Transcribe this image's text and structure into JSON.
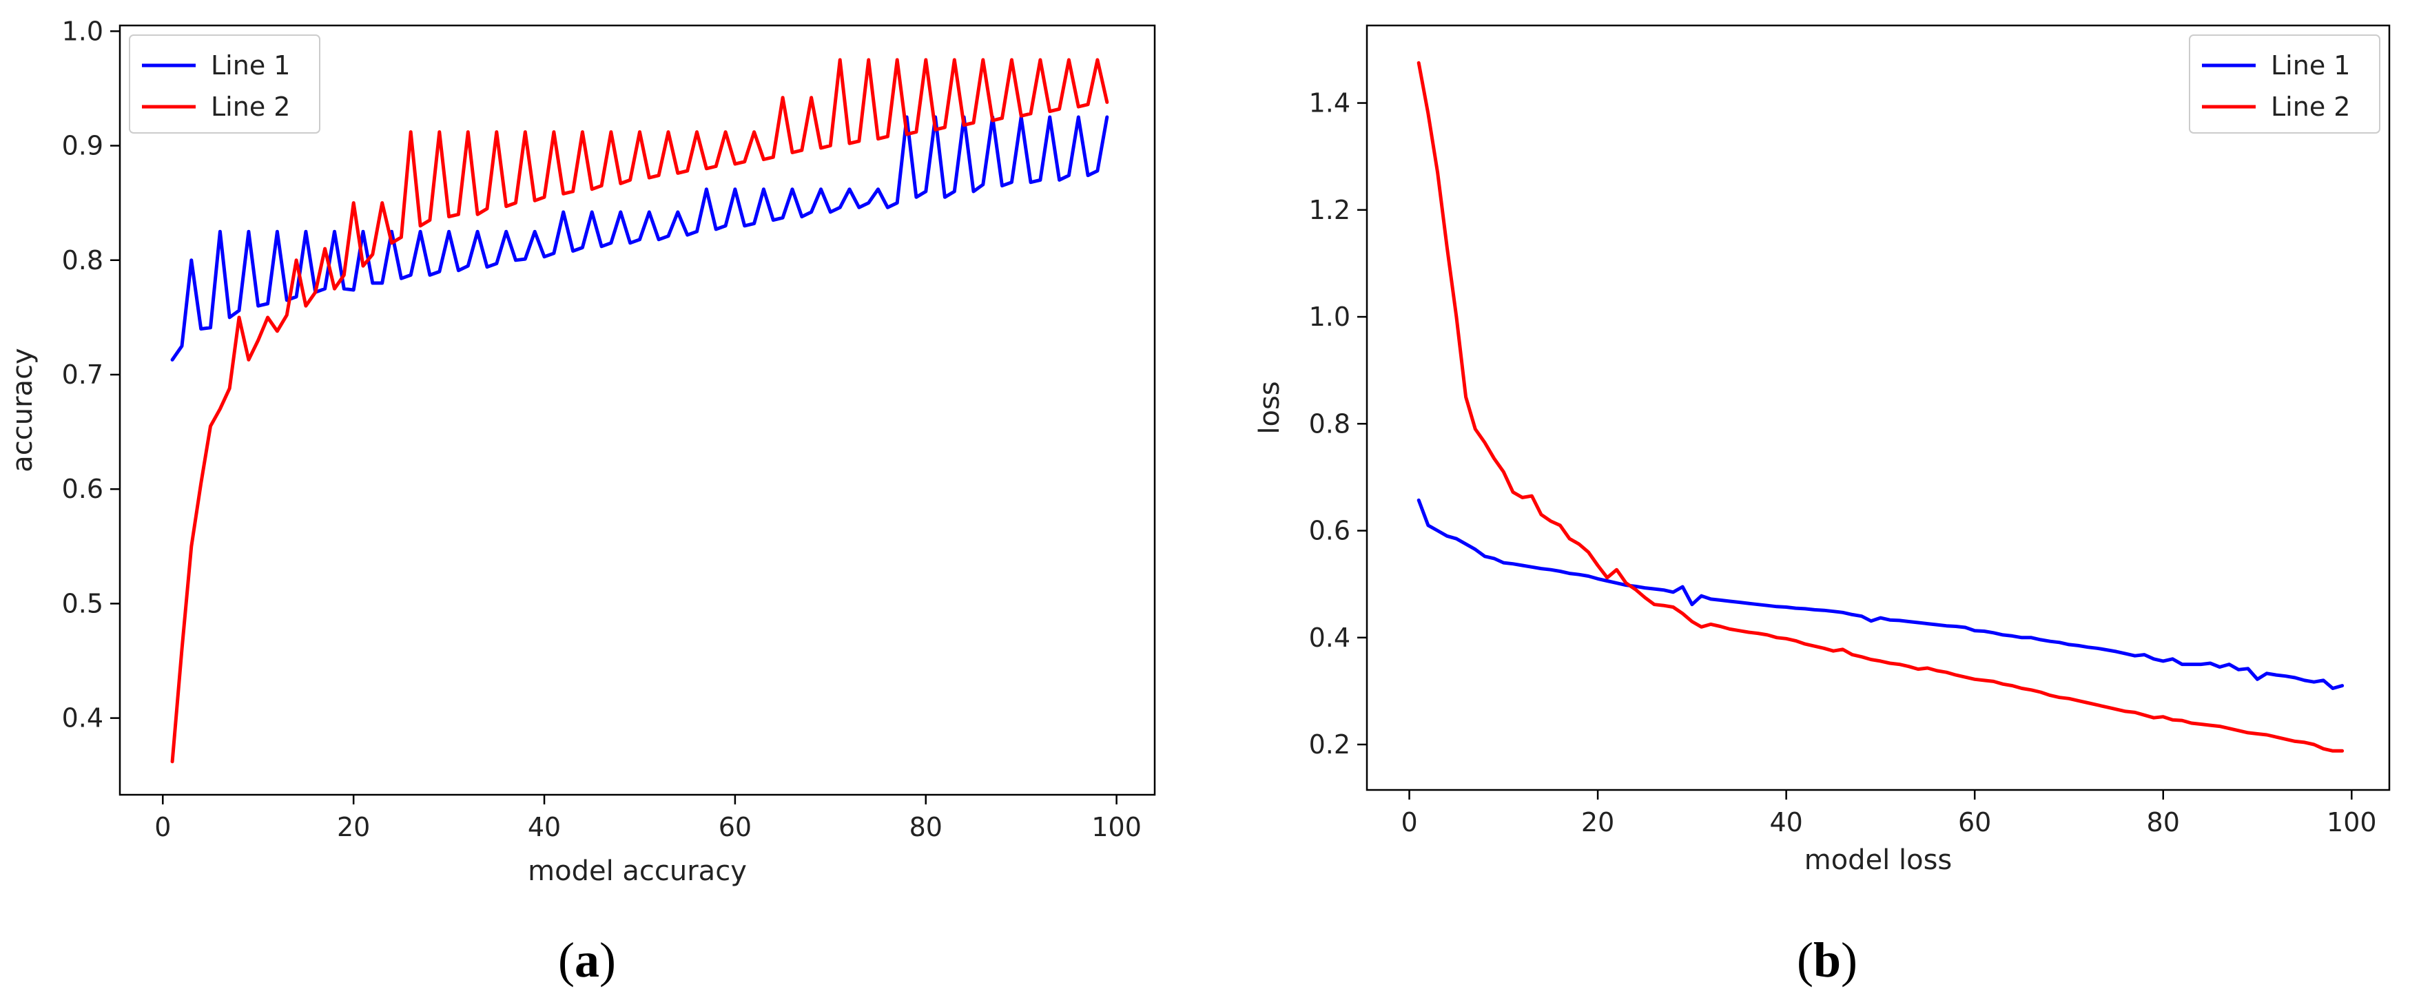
{
  "chart_data": [
    {
      "type": "line",
      "panel_label_open": "(",
      "panel_label_letter": "a",
      "panel_label_close": ")",
      "xlabel": "model accuracy",
      "ylabel": "accuracy",
      "xlim": [
        -4.5,
        104
      ],
      "ylim": [
        0.333,
        1.005
      ],
      "xticks": [
        0,
        20,
        40,
        60,
        80,
        100
      ],
      "yticks": [
        0.4,
        0.5,
        0.6,
        0.7,
        0.8,
        0.9,
        1.0
      ],
      "ytick_labels": [
        "0.4",
        "0.5",
        "0.6",
        "0.7",
        "0.8",
        "0.9",
        "1.0"
      ],
      "legend_position": "upper left",
      "grid": false,
      "series": [
        {
          "name": "Line 1",
          "color": "#0000ff",
          "x": [
            1,
            2,
            3,
            4,
            5,
            6,
            7,
            8,
            9,
            10,
            11,
            12,
            13,
            14,
            15,
            16,
            17,
            18,
            19,
            20,
            21,
            22,
            23,
            24,
            25,
            26,
            27,
            28,
            29,
            30,
            31,
            32,
            33,
            34,
            35,
            36,
            37,
            38,
            39,
            40,
            41,
            42,
            43,
            44,
            45,
            46,
            47,
            48,
            49,
            50,
            51,
            52,
            53,
            54,
            55,
            56,
            57,
            58,
            59,
            60,
            61,
            62,
            63,
            64,
            65,
            66,
            67,
            68,
            69,
            70,
            71,
            72,
            73,
            74,
            75,
            76,
            77,
            78,
            79,
            80,
            81,
            82,
            83,
            84,
            85,
            86,
            87,
            88,
            89,
            90,
            91,
            92,
            93,
            94,
            95,
            96,
            97,
            98,
            99
          ],
          "y": [
            0.713,
            0.725,
            0.8,
            0.74,
            0.741,
            0.825,
            0.75,
            0.756,
            0.825,
            0.76,
            0.762,
            0.825,
            0.765,
            0.768,
            0.825,
            0.772,
            0.775,
            0.825,
            0.775,
            0.774,
            0.825,
            0.78,
            0.78,
            0.825,
            0.784,
            0.787,
            0.825,
            0.787,
            0.79,
            0.825,
            0.791,
            0.795,
            0.825,
            0.794,
            0.797,
            0.825,
            0.8,
            0.801,
            0.825,
            0.803,
            0.806,
            0.842,
            0.808,
            0.811,
            0.842,
            0.812,
            0.815,
            0.842,
            0.815,
            0.818,
            0.842,
            0.818,
            0.821,
            0.842,
            0.822,
            0.825,
            0.862,
            0.827,
            0.83,
            0.862,
            0.83,
            0.832,
            0.862,
            0.835,
            0.837,
            0.862,
            0.838,
            0.842,
            0.862,
            0.842,
            0.846,
            0.862,
            0.846,
            0.85,
            0.862,
            0.846,
            0.85,
            0.925,
            0.855,
            0.86,
            0.925,
            0.855,
            0.86,
            0.925,
            0.86,
            0.866,
            0.925,
            0.865,
            0.868,
            0.925,
            0.868,
            0.87,
            0.925,
            0.87,
            0.874,
            0.925,
            0.874,
            0.878,
            0.925
          ]
        },
        {
          "name": "Line 2",
          "color": "#ff0000",
          "x": [
            1,
            2,
            3,
            4,
            5,
            6,
            7,
            8,
            9,
            10,
            11,
            12,
            13,
            14,
            15,
            16,
            17,
            18,
            19,
            20,
            21,
            22,
            23,
            24,
            25,
            26,
            27,
            28,
            29,
            30,
            31,
            32,
            33,
            34,
            35,
            36,
            37,
            38,
            39,
            40,
            41,
            42,
            43,
            44,
            45,
            46,
            47,
            48,
            49,
            50,
            51,
            52,
            53,
            54,
            55,
            56,
            57,
            58,
            59,
            60,
            61,
            62,
            63,
            64,
            65,
            66,
            67,
            68,
            69,
            70,
            71,
            72,
            73,
            74,
            75,
            76,
            77,
            78,
            79,
            80,
            81,
            82,
            83,
            84,
            85,
            86,
            87,
            88,
            89,
            90,
            91,
            92,
            93,
            94,
            95,
            96,
            97,
            98,
            99
          ],
          "y": [
            0.362,
            0.46,
            0.55,
            0.605,
            0.655,
            0.67,
            0.688,
            0.75,
            0.713,
            0.73,
            0.75,
            0.738,
            0.752,
            0.8,
            0.76,
            0.772,
            0.81,
            0.775,
            0.787,
            0.85,
            0.795,
            0.805,
            0.85,
            0.815,
            0.82,
            0.912,
            0.83,
            0.835,
            0.912,
            0.838,
            0.84,
            0.912,
            0.84,
            0.845,
            0.912,
            0.847,
            0.85,
            0.912,
            0.852,
            0.855,
            0.912,
            0.858,
            0.86,
            0.912,
            0.862,
            0.865,
            0.912,
            0.867,
            0.87,
            0.912,
            0.872,
            0.874,
            0.912,
            0.876,
            0.878,
            0.912,
            0.88,
            0.882,
            0.912,
            0.884,
            0.886,
            0.912,
            0.888,
            0.89,
            0.942,
            0.894,
            0.896,
            0.942,
            0.898,
            0.9,
            0.975,
            0.902,
            0.904,
            0.975,
            0.906,
            0.908,
            0.975,
            0.91,
            0.912,
            0.975,
            0.914,
            0.916,
            0.975,
            0.918,
            0.92,
            0.975,
            0.922,
            0.924,
            0.975,
            0.926,
            0.928,
            0.975,
            0.93,
            0.932,
            0.975,
            0.934,
            0.936,
            0.975,
            0.938
          ]
        }
      ]
    },
    {
      "type": "line",
      "panel_label_open": "(",
      "panel_label_letter": "b",
      "panel_label_close": ")",
      "xlabel": "model loss",
      "ylabel": "loss",
      "xlim": [
        -4.5,
        104
      ],
      "ylim": [
        0.115,
        1.545
      ],
      "xticks": [
        0,
        20,
        40,
        60,
        80,
        100
      ],
      "yticks": [
        0.2,
        0.4,
        0.6,
        0.8,
        1.0,
        1.2,
        1.4
      ],
      "ytick_labels": [
        "0.2",
        "0.4",
        "0.6",
        "0.8",
        "1.0",
        "1.2",
        "1.4"
      ],
      "legend_position": "upper right",
      "grid": false,
      "series": [
        {
          "name": "Line 1",
          "color": "#0000ff",
          "x": [
            1,
            2,
            3,
            4,
            5,
            6,
            7,
            8,
            9,
            10,
            11,
            12,
            13,
            14,
            15,
            16,
            17,
            18,
            19,
            20,
            21,
            22,
            23,
            24,
            25,
            26,
            27,
            28,
            29,
            30,
            31,
            32,
            33,
            34,
            35,
            36,
            37,
            38,
            39,
            40,
            41,
            42,
            43,
            44,
            45,
            46,
            47,
            48,
            49,
            50,
            51,
            52,
            53,
            54,
            55,
            56,
            57,
            58,
            59,
            60,
            61,
            62,
            63,
            64,
            65,
            66,
            67,
            68,
            69,
            70,
            71,
            72,
            73,
            74,
            75,
            76,
            77,
            78,
            79,
            80,
            81,
            82,
            83,
            84,
            85,
            86,
            87,
            88,
            89,
            90,
            91,
            92,
            93,
            94,
            95,
            96,
            97,
            98,
            99
          ],
          "y": [
            0.657,
            0.61,
            0.6,
            0.59,
            0.585,
            0.575,
            0.565,
            0.552,
            0.548,
            0.54,
            0.538,
            0.535,
            0.532,
            0.529,
            0.527,
            0.524,
            0.52,
            0.518,
            0.515,
            0.51,
            0.506,
            0.502,
            0.498,
            0.496,
            0.493,
            0.491,
            0.489,
            0.485,
            0.495,
            0.462,
            0.478,
            0.472,
            0.47,
            0.468,
            0.466,
            0.464,
            0.462,
            0.46,
            0.458,
            0.457,
            0.455,
            0.454,
            0.452,
            0.451,
            0.449,
            0.447,
            0.443,
            0.44,
            0.431,
            0.437,
            0.433,
            0.432,
            0.43,
            0.428,
            0.426,
            0.424,
            0.422,
            0.421,
            0.419,
            0.413,
            0.412,
            0.409,
            0.405,
            0.403,
            0.4,
            0.4,
            0.396,
            0.393,
            0.391,
            0.387,
            0.385,
            0.382,
            0.38,
            0.377,
            0.374,
            0.37,
            0.366,
            0.368,
            0.36,
            0.356,
            0.36,
            0.35,
            0.35,
            0.35,
            0.352,
            0.345,
            0.35,
            0.34,
            0.342,
            0.322,
            0.333,
            0.33,
            0.328,
            0.325,
            0.32,
            0.317,
            0.32,
            0.305,
            0.31
          ]
        },
        {
          "name": "Line 2",
          "color": "#ff0000",
          "x": [
            1,
            2,
            3,
            4,
            5,
            6,
            7,
            8,
            9,
            10,
            11,
            12,
            13,
            14,
            15,
            16,
            17,
            18,
            19,
            20,
            21,
            22,
            23,
            24,
            25,
            26,
            27,
            28,
            29,
            30,
            31,
            32,
            33,
            34,
            35,
            36,
            37,
            38,
            39,
            40,
            41,
            42,
            43,
            44,
            45,
            46,
            47,
            48,
            49,
            50,
            51,
            52,
            53,
            54,
            55,
            56,
            57,
            58,
            59,
            60,
            61,
            62,
            63,
            64,
            65,
            66,
            67,
            68,
            69,
            70,
            71,
            72,
            73,
            74,
            75,
            76,
            77,
            78,
            79,
            80,
            81,
            82,
            83,
            84,
            85,
            86,
            87,
            88,
            89,
            90,
            91,
            92,
            93,
            94,
            95,
            96,
            97,
            98,
            99
          ],
          "y": [
            1.475,
            1.38,
            1.27,
            1.13,
            1.0,
            0.85,
            0.79,
            0.765,
            0.735,
            0.71,
            0.672,
            0.662,
            0.665,
            0.63,
            0.618,
            0.61,
            0.585,
            0.575,
            0.56,
            0.535,
            0.512,
            0.527,
            0.502,
            0.49,
            0.475,
            0.462,
            0.46,
            0.457,
            0.445,
            0.43,
            0.42,
            0.425,
            0.421,
            0.416,
            0.413,
            0.41,
            0.408,
            0.405,
            0.4,
            0.398,
            0.394,
            0.388,
            0.384,
            0.38,
            0.375,
            0.378,
            0.368,
            0.364,
            0.359,
            0.356,
            0.352,
            0.35,
            0.346,
            0.341,
            0.343,
            0.338,
            0.335,
            0.33,
            0.326,
            0.322,
            0.32,
            0.318,
            0.313,
            0.31,
            0.305,
            0.302,
            0.298,
            0.292,
            0.288,
            0.286,
            0.282,
            0.278,
            0.274,
            0.27,
            0.266,
            0.262,
            0.26,
            0.255,
            0.25,
            0.252,
            0.246,
            0.245,
            0.24,
            0.238,
            0.236,
            0.234,
            0.23,
            0.226,
            0.222,
            0.22,
            0.218,
            0.214,
            0.21,
            0.206,
            0.204,
            0.2,
            0.192,
            0.188,
            0.188
          ]
        }
      ]
    }
  ]
}
